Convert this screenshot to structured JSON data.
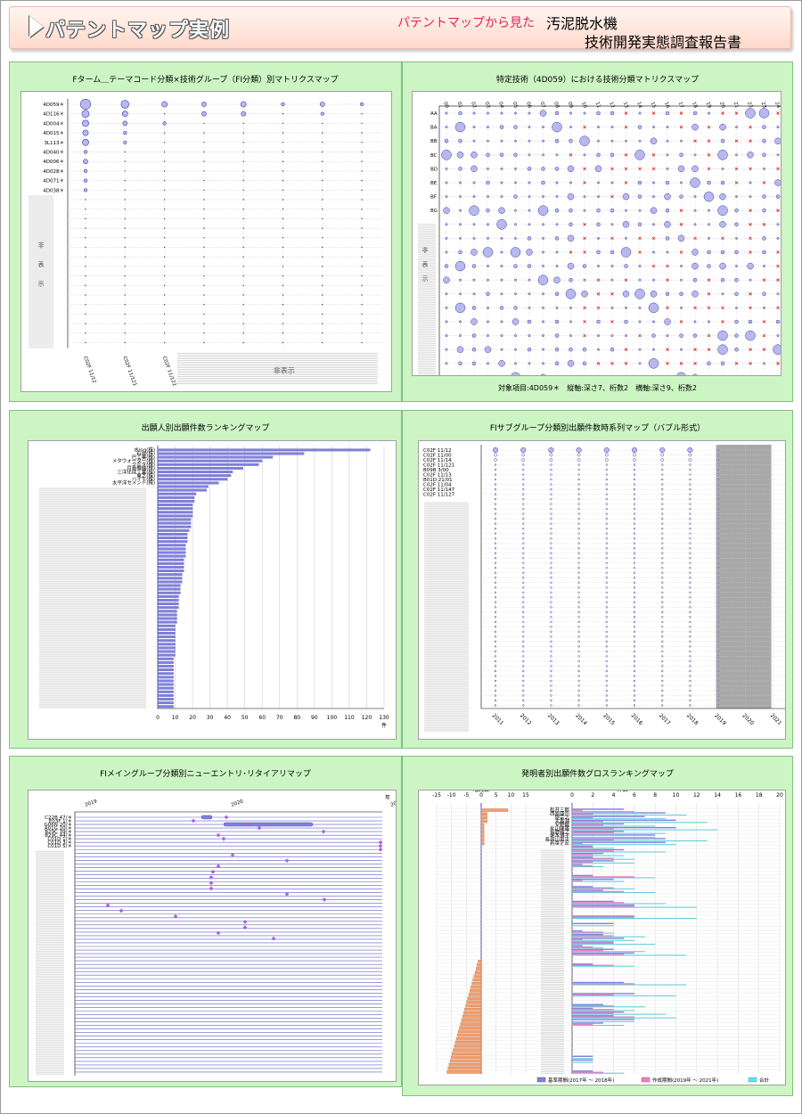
{
  "banner": {
    "title": "パテントマップ実例",
    "subtitle": "パテントマップから見た",
    "report_line1": "汚泥脱水機",
    "report_line2": "技術開発実態調査報告書"
  },
  "panels": {
    "p1": {
      "title": "Fターム＿テーマコード分類×技術グループ（FI分類）別マトリクスマップ",
      "hidden_y": "非表示",
      "hidden_x": "非表示"
    },
    "p2": {
      "title": "特定技術（4D059）における技術分類マトリクスマップ",
      "hidden_y": "非表示",
      "note": "対象項目:4D059＊　縦軸:深さ7、桁数2　横軸:深さ9、桁数2"
    },
    "p3": {
      "title": "出願人別出願件数ランキングマップ",
      "unit": "件"
    },
    "p4": {
      "title": "FIサブグループ分類別出願件数時系列マップ（バブル形式）",
      "unit": "年"
    },
    "p5": {
      "title": "FIメイングループ分類別ニューエントリ･リタイアリマップ",
      "unit": "年"
    },
    "p6": {
      "title": "発明者別出願件数グロスランキングマップ",
      "left_label": "増減数",
      "right_label": "件数",
      "legend": [
        "基準期間(2017年 ～ 2018年)",
        "作成期間(2019年 ～ 2021年)",
        "合計"
      ]
    }
  },
  "colors": {
    "bubble": "#b8b8f0",
    "bubble_stroke": "#4040a0",
    "cross": "#e02020",
    "bar": "#8080e0",
    "diamond": "#b060e0",
    "orange": "#f0a070",
    "pink": "#f080c0",
    "cyan": "#60e0f0",
    "gray": "#a8a8a8",
    "panel_bg": "#cdf5c4"
  },
  "chart_data": [
    {
      "type": "scatter",
      "id": "matrix1",
      "title": "Fターム＿テーマコード分類×技術グループ（FI分類）別マトリクスマップ",
      "y_categories": [
        "4D059＊",
        "4D116＊",
        "4D004＊",
        "4D015＊",
        "3L113＊",
        "4D040＊",
        "4D006＊",
        "4D028＊",
        "4D071＊",
        "4D038＊"
      ],
      "x_categories": [
        "C02F 11/12",
        "C02F 11/121",
        "C02F 11/122"
      ],
      "hidden_rows": 16,
      "hidden_cols": 7,
      "points": [
        [
          0,
          0,
          10
        ],
        [
          1,
          0,
          6
        ],
        [
          2,
          0,
          3
        ],
        [
          3,
          0,
          2
        ],
        [
          4,
          0,
          3
        ],
        [
          5,
          0,
          1
        ],
        [
          6,
          0,
          2
        ],
        [
          7,
          0,
          1
        ],
        [
          0,
          1,
          5
        ],
        [
          1,
          1,
          3
        ],
        [
          3,
          1,
          2
        ],
        [
          4,
          1,
          2
        ],
        [
          6,
          1,
          1
        ],
        [
          0,
          2,
          4
        ],
        [
          1,
          2,
          2
        ],
        [
          2,
          2,
          1
        ],
        [
          0,
          3,
          3
        ],
        [
          1,
          3,
          1
        ],
        [
          0,
          4,
          4
        ],
        [
          1,
          4,
          1
        ],
        [
          0,
          5,
          1
        ],
        [
          0,
          6,
          2
        ],
        [
          0,
          7,
          1
        ],
        [
          0,
          8,
          1
        ],
        [
          0,
          9,
          1
        ]
      ]
    },
    {
      "type": "scatter",
      "id": "matrix2",
      "title": "特定技術（4D059）における技術分類マトリクスマップ",
      "x_categories": [
        "00",
        "01",
        "02",
        "03",
        "04",
        "05",
        "06",
        "07",
        "08",
        "09",
        "10",
        "11",
        "12",
        "13",
        "14",
        "15",
        "16",
        "17",
        "18",
        "19",
        "20",
        "21",
        "22",
        "23",
        "24"
      ],
      "y_categories": [
        "AA",
        "BA",
        "BB",
        "BC",
        "BD",
        "BE",
        "BF",
        "BG"
      ],
      "hidden_rows": 12
    },
    {
      "type": "bar",
      "id": "ranking",
      "title": "出願人別出願件数ランキングマップ",
      "categories": [
        "水ing(株)",
        "石垣(株)",
        "巴工業(株)",
        "メタウォーター(株)",
        "クボタ(株)",
        "月島機械(株)",
        "三洋化成工業(株)",
        "東芝(株)",
        "ハイモ(株)",
        "太平洋セメント(株)"
      ],
      "values": [
        122,
        84,
        66,
        60,
        58,
        49,
        43,
        42,
        40,
        35
      ],
      "hidden_values": [
        29,
        28,
        22,
        21,
        21,
        20,
        20,
        20,
        20,
        19,
        19,
        19,
        18,
        17,
        17,
        17,
        16,
        16,
        16,
        16,
        15,
        15,
        15,
        15,
        14,
        14,
        14,
        13,
        13,
        13,
        12,
        12,
        12,
        12,
        11,
        11,
        11,
        11,
        10,
        10,
        10,
        10,
        10,
        10,
        10,
        10,
        10,
        9,
        9,
        9,
        9,
        9,
        9,
        9,
        9,
        9,
        9,
        9,
        9,
        9,
        9
      ],
      "xlim": [
        0,
        130
      ],
      "xticks": [
        0,
        10,
        20,
        30,
        40,
        50,
        60,
        70,
        80,
        90,
        100,
        110,
        120,
        130
      ],
      "xlabel": "件"
    },
    {
      "type": "scatter",
      "id": "timeseries",
      "title": "FIサブグループ分類別出願件数時系列マップ（バブル形式）",
      "categories": [
        "C02F 11/12",
        "C02F 11/00",
        "C02F 11/14",
        "C02F 11/121",
        "B09B 3/00",
        "C02F 11/13",
        "B01D 21/01",
        "C02F 11/04",
        "C02F 11/147",
        "C02F 11/127"
      ],
      "years": [
        "2011",
        "2012",
        "2013",
        "2014",
        "2015",
        "2016",
        "2017",
        "2018",
        "2019",
        "2020",
        "2021"
      ],
      "hidden_rows": 43,
      "xlabel": "年"
    },
    {
      "type": "scatter",
      "id": "entry",
      "title": "FIメイングループ分類別ニューエントリ･リタイアリマップ",
      "categories": [
        "C22B 47/＊",
        "E03F 1/＊",
        "G06N 20/＊",
        "A01G 20/＊",
        "B29C 39/＊",
        "B29C 44/＊",
        "C01D 1/＊",
        "C01D 3/＊",
        "C01D 5/＊"
      ],
      "years": [
        "2019",
        "2020",
        "2021"
      ],
      "xlabel": "年"
    },
    {
      "type": "bar",
      "id": "inventor",
      "title": "発明者別出願件数グロスランキングマップ",
      "categories": [
        "松井三郎",
        "西原康司",
        "堤宗之",
        "大香湖",
        "安野誠",
        "片山隆雄",
        "長野雅之",
        "堀本博子",
        "長谷川真平",
        "若菜正宏"
      ],
      "left_xticks": [
        -15,
        -10,
        -5,
        0,
        5,
        10,
        15
      ],
      "right_xticks": [
        0,
        2,
        4,
        6,
        8,
        10,
        12,
        14,
        16,
        18,
        20
      ],
      "left_label": "増減数",
      "right_label": "件数",
      "legend": [
        "基準期間(2017年 ～ 2018年)",
        "作成期間(2019年 ～ 2021年)",
        "合計"
      ]
    }
  ]
}
